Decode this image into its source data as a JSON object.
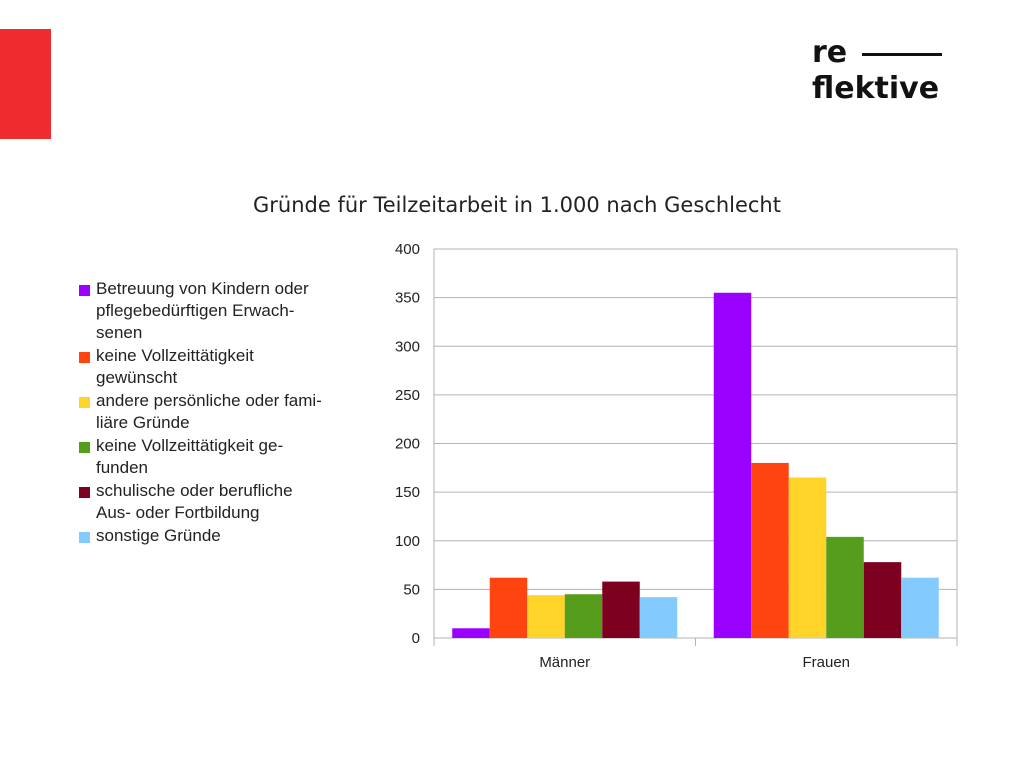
{
  "brand": {
    "logo_line1": "re",
    "logo_line2": "flektive",
    "accent_color": "#ee2b2e"
  },
  "chart_data": {
    "type": "bar",
    "title": "Gründe für Teilzeitarbeit in 1.000 nach Geschlecht",
    "categories": [
      "Männer",
      "Frauen"
    ],
    "ylim": [
      0,
      400
    ],
    "yticks": [
      0,
      50,
      100,
      150,
      200,
      250,
      300,
      350,
      400
    ],
    "grid": true,
    "legend_position": "left",
    "series": [
      {
        "name": "Betreuung von Kindern oder\npflegebedürftigen Erwach-\nsenen",
        "color": "#9a00ff",
        "values": [
          10,
          355
        ]
      },
      {
        "name": "keine Vollzeittätigkeit\ngewünscht",
        "color": "#ff4410",
        "values": [
          62,
          180
        ]
      },
      {
        "name": "andere persönliche oder fami-\nliäre Gründe",
        "color": "#ffd327",
        "values": [
          44,
          165
        ]
      },
      {
        "name": "keine Vollzeittätigkeit ge-\nfunden",
        "color": "#579d1c",
        "values": [
          45,
          104
        ]
      },
      {
        "name": "schulische oder berufliche\nAus- oder Fortbildung",
        "color": "#7e0021",
        "values": [
          58,
          78
        ]
      },
      {
        "name": "sonstige Gründe",
        "color": "#83caff",
        "values": [
          42,
          62
        ]
      }
    ]
  }
}
